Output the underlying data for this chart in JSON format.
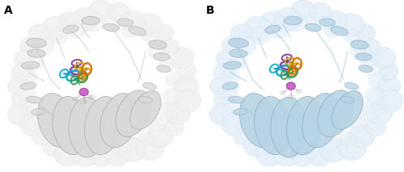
{
  "fig_width": 5.0,
  "fig_height": 2.13,
  "dpi": 100,
  "background_color": "#ffffff",
  "panel_A_label": "A",
  "panel_B_label": "B",
  "label_fontsize": 10,
  "label_fontweight": "bold",
  "protein_A_ribbon": "#d8d8d8",
  "protein_A_edge": "#b0b0b0",
  "protein_B_ribbon": "#b8d4e4",
  "protein_B_edge": "#8fb0c8",
  "surface_A_color": "#f0f0f0",
  "surface_A_edge": "#e0e0e0",
  "surface_B_color": "#e4eff8",
  "surface_B_edge": "#c8dce8",
  "zinc_color": "#cc66cc",
  "zinc_edge": "#aa44aa",
  "inhibitor_colors": [
    "#8030a0",
    "#ccb800",
    "#00aacc",
    "#389038",
    "#d86c18"
  ],
  "his_color": "#c8c8c8",
  "loop_color_A": "#c8c8c8",
  "loop_color_B": "#a8c4d8"
}
